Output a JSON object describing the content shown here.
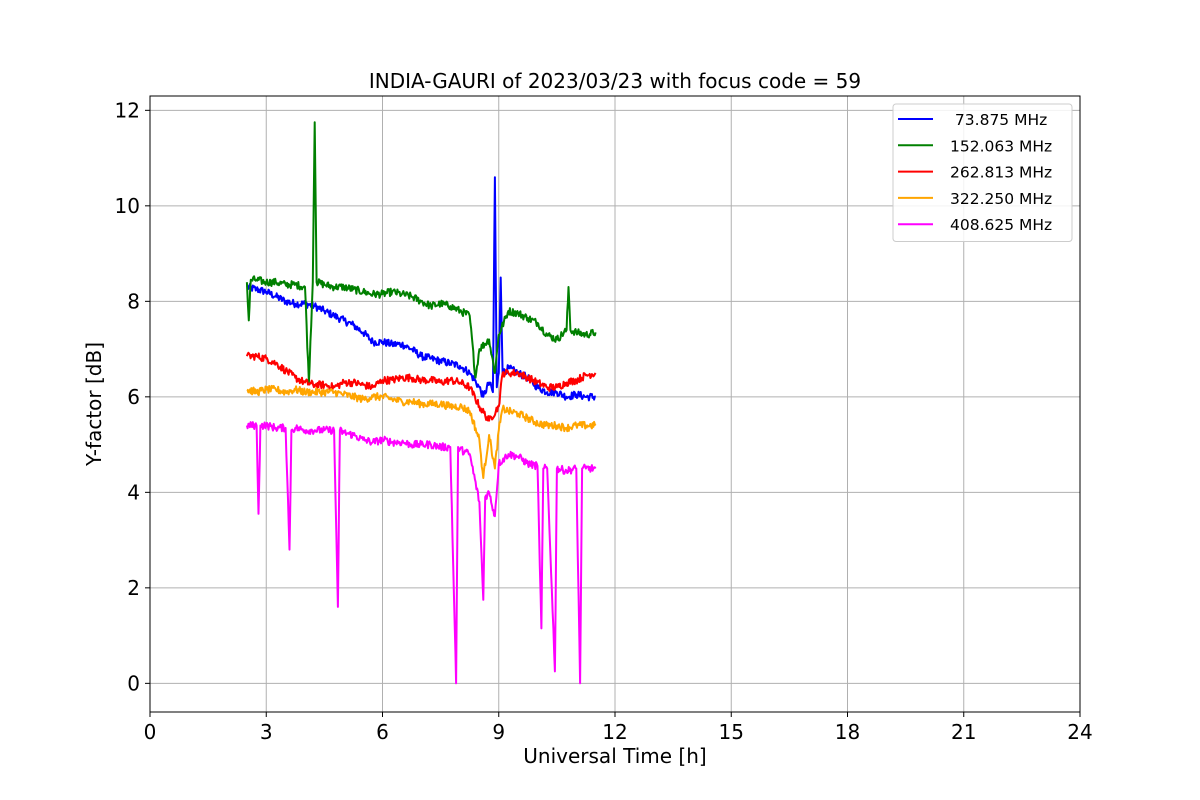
{
  "chart_data": {
    "type": "line",
    "title": "INDIA-GAURI of 2023/03/23 with focus code = 59",
    "xlabel": "Universal Time [h]",
    "ylabel": "Y-factor [dB]",
    "xlim": [
      0,
      24
    ],
    "ylim": [
      -0.6,
      12.3
    ],
    "xticks": [
      0,
      3,
      6,
      9,
      12,
      15,
      18,
      21,
      24
    ],
    "yticks": [
      0,
      2,
      4,
      6,
      8,
      10,
      12
    ],
    "grid": true,
    "legend_position": "top-right",
    "series": [
      {
        "name": " 73.875 MHz",
        "color": "#0000ff",
        "points": [
          [
            2.5,
            8.3
          ],
          [
            2.75,
            8.25
          ],
          [
            3.0,
            8.2
          ],
          [
            3.25,
            8.1
          ],
          [
            3.5,
            8.0
          ],
          [
            3.75,
            7.95
          ],
          [
            4.0,
            7.95
          ],
          [
            4.25,
            7.9
          ],
          [
            4.5,
            7.8
          ],
          [
            4.75,
            7.7
          ],
          [
            5.0,
            7.6
          ],
          [
            5.25,
            7.5
          ],
          [
            5.5,
            7.35
          ],
          [
            5.75,
            7.15
          ],
          [
            6.0,
            7.15
          ],
          [
            6.25,
            7.1
          ],
          [
            6.5,
            7.1
          ],
          [
            6.75,
            7.0
          ],
          [
            7.0,
            6.85
          ],
          [
            7.25,
            6.8
          ],
          [
            7.5,
            6.75
          ],
          [
            7.75,
            6.7
          ],
          [
            8.0,
            6.65
          ],
          [
            8.25,
            6.5
          ],
          [
            8.5,
            6.2
          ],
          [
            8.6,
            6.0
          ],
          [
            8.75,
            6.3
          ],
          [
            8.85,
            6.1
          ],
          [
            8.9,
            10.6
          ],
          [
            8.95,
            6.2
          ],
          [
            9.0,
            6.5
          ],
          [
            9.05,
            8.5
          ],
          [
            9.1,
            6.5
          ],
          [
            9.25,
            6.6
          ],
          [
            9.5,
            6.5
          ],
          [
            9.75,
            6.4
          ],
          [
            10.0,
            6.2
          ],
          [
            10.25,
            6.1
          ],
          [
            10.5,
            6.1
          ],
          [
            10.75,
            6.0
          ],
          [
            11.0,
            6.05
          ],
          [
            11.25,
            6.0
          ],
          [
            11.5,
            6.0
          ]
        ]
      },
      {
        "name": "152.063 MHz",
        "color": "#008000",
        "points": [
          [
            2.5,
            8.4
          ],
          [
            2.55,
            7.6
          ],
          [
            2.6,
            8.45
          ],
          [
            2.75,
            8.45
          ],
          [
            3.0,
            8.4
          ],
          [
            3.25,
            8.4
          ],
          [
            3.5,
            8.35
          ],
          [
            3.75,
            8.35
          ],
          [
            4.0,
            8.3
          ],
          [
            4.1,
            6.3
          ],
          [
            4.2,
            8.4
          ],
          [
            4.25,
            11.75
          ],
          [
            4.3,
            8.4
          ],
          [
            4.5,
            8.35
          ],
          [
            4.75,
            8.3
          ],
          [
            5.0,
            8.3
          ],
          [
            5.25,
            8.25
          ],
          [
            5.5,
            8.2
          ],
          [
            5.75,
            8.15
          ],
          [
            6.0,
            8.15
          ],
          [
            6.25,
            8.2
          ],
          [
            6.5,
            8.15
          ],
          [
            6.75,
            8.1
          ],
          [
            7.0,
            8.0
          ],
          [
            7.25,
            7.9
          ],
          [
            7.5,
            7.95
          ],
          [
            7.75,
            7.9
          ],
          [
            8.0,
            7.8
          ],
          [
            8.25,
            7.7
          ],
          [
            8.4,
            6.4
          ],
          [
            8.5,
            7.0
          ],
          [
            8.75,
            7.2
          ],
          [
            8.9,
            6.5
          ],
          [
            9.0,
            7.3
          ],
          [
            9.25,
            7.8
          ],
          [
            9.5,
            7.75
          ],
          [
            9.75,
            7.65
          ],
          [
            10.0,
            7.55
          ],
          [
            10.25,
            7.3
          ],
          [
            10.5,
            7.2
          ],
          [
            10.75,
            7.4
          ],
          [
            10.8,
            8.3
          ],
          [
            10.85,
            7.4
          ],
          [
            11.0,
            7.35
          ],
          [
            11.25,
            7.3
          ],
          [
            11.5,
            7.35
          ]
        ]
      },
      {
        "name": "262.813 MHz",
        "color": "#ff0000",
        "points": [
          [
            2.5,
            6.85
          ],
          [
            2.75,
            6.85
          ],
          [
            3.0,
            6.8
          ],
          [
            3.25,
            6.7
          ],
          [
            3.5,
            6.55
          ],
          [
            3.75,
            6.4
          ],
          [
            4.0,
            6.3
          ],
          [
            4.25,
            6.25
          ],
          [
            4.5,
            6.25
          ],
          [
            4.75,
            6.2
          ],
          [
            5.0,
            6.3
          ],
          [
            5.25,
            6.3
          ],
          [
            5.5,
            6.25
          ],
          [
            5.75,
            6.2
          ],
          [
            6.0,
            6.35
          ],
          [
            6.25,
            6.35
          ],
          [
            6.5,
            6.4
          ],
          [
            6.75,
            6.4
          ],
          [
            7.0,
            6.35
          ],
          [
            7.25,
            6.35
          ],
          [
            7.5,
            6.3
          ],
          [
            7.75,
            6.35
          ],
          [
            8.0,
            6.3
          ],
          [
            8.25,
            6.2
          ],
          [
            8.5,
            5.8
          ],
          [
            8.75,
            5.5
          ],
          [
            9.0,
            5.8
          ],
          [
            9.1,
            6.5
          ],
          [
            9.25,
            6.5
          ],
          [
            9.5,
            6.5
          ],
          [
            9.75,
            6.4
          ],
          [
            10.0,
            6.3
          ],
          [
            10.25,
            6.2
          ],
          [
            10.5,
            6.2
          ],
          [
            10.75,
            6.3
          ],
          [
            11.0,
            6.35
          ],
          [
            11.25,
            6.45
          ],
          [
            11.5,
            6.5
          ]
        ]
      },
      {
        "name": "322.250 MHz",
        "color": "#ffa500",
        "points": [
          [
            2.5,
            6.15
          ],
          [
            2.75,
            6.1
          ],
          [
            3.0,
            6.15
          ],
          [
            3.25,
            6.15
          ],
          [
            3.5,
            6.1
          ],
          [
            3.75,
            6.15
          ],
          [
            4.0,
            6.1
          ],
          [
            4.25,
            6.1
          ],
          [
            4.5,
            6.1
          ],
          [
            4.75,
            6.1
          ],
          [
            5.0,
            6.05
          ],
          [
            5.25,
            6.0
          ],
          [
            5.5,
            5.95
          ],
          [
            5.75,
            6.0
          ],
          [
            6.0,
            6.0
          ],
          [
            6.25,
            5.95
          ],
          [
            6.5,
            5.9
          ],
          [
            6.75,
            5.9
          ],
          [
            7.0,
            5.85
          ],
          [
            7.25,
            5.85
          ],
          [
            7.5,
            5.85
          ],
          [
            7.75,
            5.8
          ],
          [
            8.0,
            5.8
          ],
          [
            8.25,
            5.7
          ],
          [
            8.5,
            5.1
          ],
          [
            8.6,
            4.3
          ],
          [
            8.75,
            5.2
          ],
          [
            8.9,
            4.5
          ],
          [
            9.0,
            5.3
          ],
          [
            9.1,
            5.75
          ],
          [
            9.25,
            5.7
          ],
          [
            9.5,
            5.65
          ],
          [
            9.75,
            5.55
          ],
          [
            10.0,
            5.45
          ],
          [
            10.25,
            5.4
          ],
          [
            10.5,
            5.4
          ],
          [
            10.75,
            5.35
          ],
          [
            11.0,
            5.4
          ],
          [
            11.25,
            5.4
          ],
          [
            11.5,
            5.4
          ]
        ]
      },
      {
        "name": "408.625 MHz",
        "color": "#ff00ff",
        "points": [
          [
            2.5,
            5.4
          ],
          [
            2.75,
            5.4
          ],
          [
            2.8,
            3.55
          ],
          [
            2.85,
            5.4
          ],
          [
            3.0,
            5.4
          ],
          [
            3.25,
            5.35
          ],
          [
            3.5,
            5.35
          ],
          [
            3.6,
            2.8
          ],
          [
            3.65,
            5.3
          ],
          [
            3.75,
            5.35
          ],
          [
            4.0,
            5.3
          ],
          [
            4.25,
            5.3
          ],
          [
            4.5,
            5.3
          ],
          [
            4.75,
            5.3
          ],
          [
            4.85,
            1.6
          ],
          [
            4.9,
            5.3
          ],
          [
            5.0,
            5.25
          ],
          [
            5.25,
            5.2
          ],
          [
            5.5,
            5.1
          ],
          [
            5.75,
            5.05
          ],
          [
            6.0,
            5.1
          ],
          [
            6.25,
            5.05
          ],
          [
            6.5,
            5.05
          ],
          [
            6.75,
            5.0
          ],
          [
            7.0,
            5.0
          ],
          [
            7.25,
            5.0
          ],
          [
            7.5,
            4.95
          ],
          [
            7.75,
            4.95
          ],
          [
            7.9,
            0.0
          ],
          [
            7.95,
            4.95
          ],
          [
            8.0,
            4.9
          ],
          [
            8.25,
            4.8
          ],
          [
            8.5,
            3.8
          ],
          [
            8.6,
            1.75
          ],
          [
            8.65,
            3.9
          ],
          [
            8.75,
            4.0
          ],
          [
            8.9,
            3.5
          ],
          [
            9.0,
            4.6
          ],
          [
            9.25,
            4.8
          ],
          [
            9.5,
            4.75
          ],
          [
            9.75,
            4.6
          ],
          [
            10.0,
            4.55
          ],
          [
            10.1,
            1.15
          ],
          [
            10.15,
            4.5
          ],
          [
            10.25,
            4.5
          ],
          [
            10.45,
            0.25
          ],
          [
            10.5,
            4.5
          ],
          [
            10.75,
            4.45
          ],
          [
            11.0,
            4.5
          ],
          [
            11.1,
            0.0
          ],
          [
            11.15,
            4.5
          ],
          [
            11.25,
            4.5
          ],
          [
            11.5,
            4.5
          ]
        ]
      }
    ]
  }
}
